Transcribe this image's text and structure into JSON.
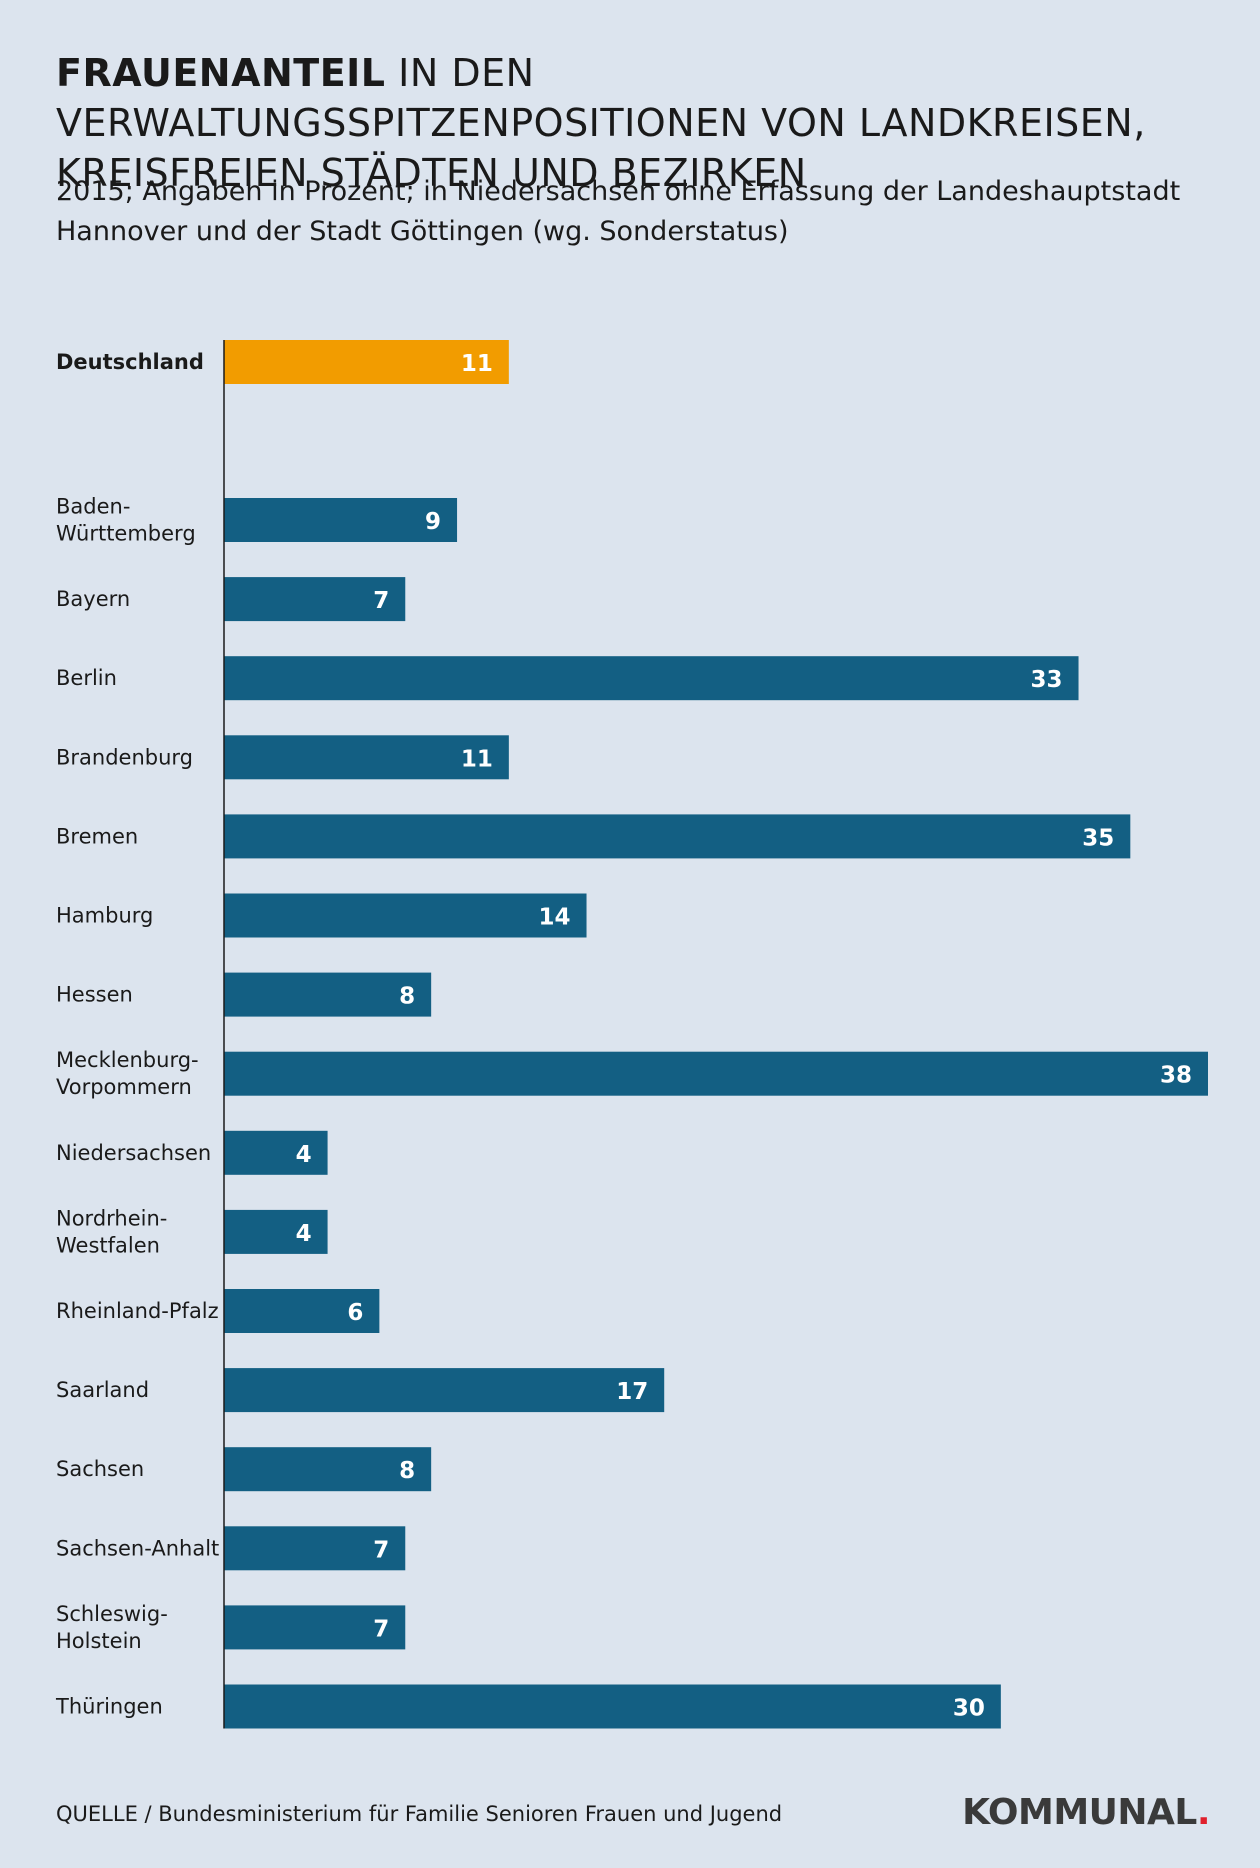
{
  "title": {
    "strong": "FRAUENANTEIL",
    "rest": " IN DEN VERWALTUNGSSPITZENPOSITIONEN VON LANDKREISEN, KREISFREIEN STÄDTEN UND BEZIRKEN"
  },
  "subtitle": "2015; Angaben in Prozent; in Niedersachsen ohne Erfassung der Landeshauptstadt Hannover und der Stadt Göttingen (wg. Sonderstatus)",
  "source": "QUELLE / Bundesministerium für Familie Senioren Frauen und Jugend",
  "logo": {
    "text": "KOMMUNAL",
    "dot": "."
  },
  "colors": {
    "highlight": "#f29c00",
    "bar": "#135f83",
    "background": "#dce4ee",
    "axis": "#1a1a1a"
  },
  "chart_data": {
    "type": "bar",
    "orientation": "horizontal",
    "title": "FRAUENANTEIL IN DEN VERWALTUNGSSPITZENPOSITIONEN VON LANDKREISEN, KREISFREIEN STÄDTEN UND BEZIRKEN",
    "xlabel": "",
    "ylabel": "",
    "xlim": [
      0,
      38
    ],
    "grid": false,
    "highlight": {
      "category": [
        "Deutschland"
      ],
      "value": 11
    },
    "categories": [
      [
        "Baden-",
        "Württemberg"
      ],
      [
        "Bayern"
      ],
      [
        "Berlin"
      ],
      [
        "Brandenburg"
      ],
      [
        "Bremen"
      ],
      [
        "Hamburg"
      ],
      [
        "Hessen"
      ],
      [
        "Mecklenburg-",
        "Vorpommern"
      ],
      [
        "Niedersachsen"
      ],
      [
        "Nordrhein-",
        "Westfalen"
      ],
      [
        "Rheinland-Pfalz"
      ],
      [
        "Saarland"
      ],
      [
        "Sachsen"
      ],
      [
        "Sachsen-Anhalt"
      ],
      [
        "Schleswig-",
        "Holstein"
      ],
      [
        "Thüringen"
      ]
    ],
    "values": [
      9,
      7,
      33,
      11,
      35,
      14,
      8,
      38,
      4,
      4,
      6,
      17,
      8,
      7,
      7,
      30
    ]
  }
}
